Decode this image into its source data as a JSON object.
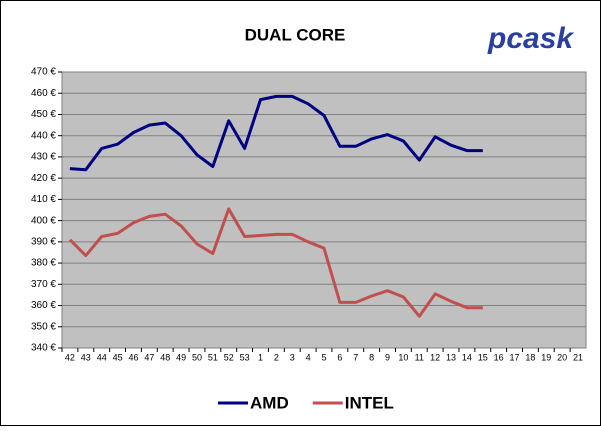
{
  "chart_data": {
    "type": "line",
    "title": "DUAL CORE",
    "logo": "pcask",
    "categories": [
      "42",
      "43",
      "44",
      "45",
      "46",
      "47",
      "48",
      "49",
      "50",
      "51",
      "52",
      "53",
      "1",
      "2",
      "3",
      "4",
      "5",
      "6",
      "7",
      "8",
      "9",
      "10",
      "11",
      "12",
      "13",
      "14",
      "15",
      "16",
      "17",
      "18",
      "19",
      "20",
      "21"
    ],
    "series": [
      {
        "name": "AMD",
        "color": "#000080",
        "values": [
          424.5,
          424,
          434,
          436,
          441.5,
          445,
          446,
          440,
          431,
          425.5,
          447,
          434,
          457,
          458.5,
          458.5,
          455,
          449.5,
          435,
          435,
          438.5,
          440.5,
          437.5,
          428.5,
          439.5,
          435.5,
          433,
          433,
          null,
          null,
          null,
          null,
          null,
          null
        ]
      },
      {
        "name": "INTEL",
        "color": "#c0504d",
        "values": [
          391,
          383.5,
          392.5,
          394,
          399,
          402,
          403,
          397.5,
          389,
          384.5,
          405.5,
          392.5,
          393,
          393.5,
          393.5,
          390,
          387,
          361.5,
          361.5,
          364.5,
          367,
          364,
          355,
          365.5,
          362,
          359,
          359,
          null,
          null,
          null,
          null,
          null,
          null
        ]
      }
    ],
    "ylim": [
      340,
      470
    ],
    "yticks": [
      {
        "value": 340,
        "label": "340 €"
      },
      {
        "value": 350,
        "label": "350 €"
      },
      {
        "value": 360,
        "label": "360 €"
      },
      {
        "value": 370,
        "label": "370 €"
      },
      {
        "value": 380,
        "label": "380 €"
      },
      {
        "value": 390,
        "label": "390 €"
      },
      {
        "value": 400,
        "label": "400 €"
      },
      {
        "value": 410,
        "label": "410 €"
      },
      {
        "value": 420,
        "label": "420 €"
      },
      {
        "value": 430,
        "label": "430 €"
      },
      {
        "value": 440,
        "label": "440 €"
      },
      {
        "value": 450,
        "label": "450 €"
      },
      {
        "value": 460,
        "label": "460 €"
      },
      {
        "value": 470,
        "label": "470 €"
      }
    ],
    "grid": true,
    "legend": "bottom"
  }
}
